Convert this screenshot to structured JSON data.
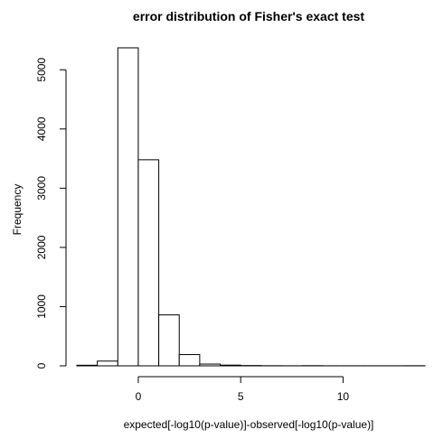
{
  "chart_data": {
    "type": "bar",
    "subtype": "histogram",
    "title": "error distribution of Fisher's exact test",
    "xlabel": "expected[-log10(p-value)]-observed[-log10(p-value)]",
    "ylabel": "Frequency",
    "xlim": [
      -3,
      14
    ],
    "ylim": [
      0,
      5400
    ],
    "x_ticks": [
      0,
      5,
      10
    ],
    "y_ticks": [
      0,
      1000,
      2000,
      3000,
      4000,
      5000
    ],
    "grid": false,
    "bins": [
      {
        "x0": -3,
        "x1": -2,
        "count": 10
      },
      {
        "x0": -2,
        "x1": -1,
        "count": 80
      },
      {
        "x0": -1,
        "x1": 0,
        "count": 5370
      },
      {
        "x0": 0,
        "x1": 1,
        "count": 3480
      },
      {
        "x0": 1,
        "x1": 2,
        "count": 860
      },
      {
        "x0": 2,
        "x1": 3,
        "count": 190
      },
      {
        "x0": 3,
        "x1": 4,
        "count": 30
      },
      {
        "x0": 4,
        "x1": 5,
        "count": 12
      },
      {
        "x0": 5,
        "x1": 6,
        "count": 5
      },
      {
        "x0": 6,
        "x1": 7,
        "count": 2
      },
      {
        "x0": 7,
        "x1": 8,
        "count": 1
      },
      {
        "x0": 8,
        "x1": 9,
        "count": 3
      },
      {
        "x0": 9,
        "x1": 10,
        "count": 1
      },
      {
        "x0": 10,
        "x1": 11,
        "count": 1
      },
      {
        "x0": 11,
        "x1": 12,
        "count": 1
      },
      {
        "x0": 12,
        "x1": 13,
        "count": 1
      },
      {
        "x0": 13,
        "x1": 14,
        "count": 2
      }
    ]
  }
}
